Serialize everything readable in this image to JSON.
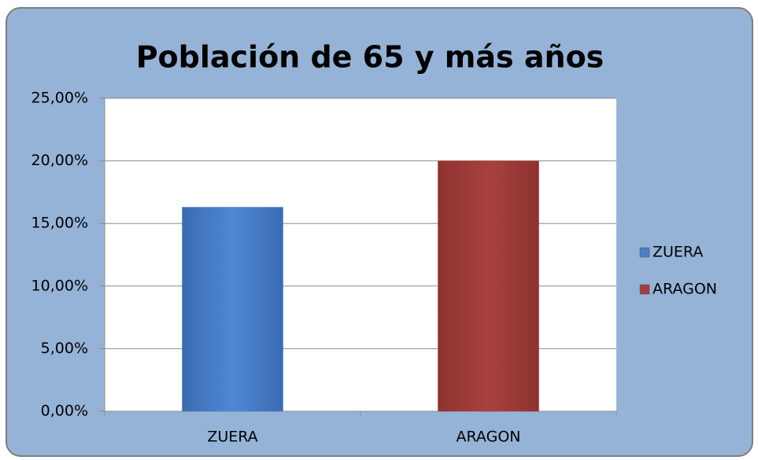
{
  "chart_data": {
    "type": "bar",
    "title": "Población de 65 y más años",
    "categories": [
      "ZUERA",
      "ARAGON"
    ],
    "values": [
      16.3,
      20.0
    ],
    "colors": [
      "#4a7fc9",
      "#a33d3b"
    ],
    "ylim": [
      0,
      25
    ],
    "yticks": [
      {
        "value": 0,
        "label": "0,00%"
      },
      {
        "value": 5,
        "label": "5,00%"
      },
      {
        "value": 10,
        "label": "10,00%"
      },
      {
        "value": 15,
        "label": "15,00%"
      },
      {
        "value": 20,
        "label": "20,00%"
      },
      {
        "value": 25,
        "label": "25,00%"
      }
    ],
    "grid": true,
    "legend": "right"
  }
}
